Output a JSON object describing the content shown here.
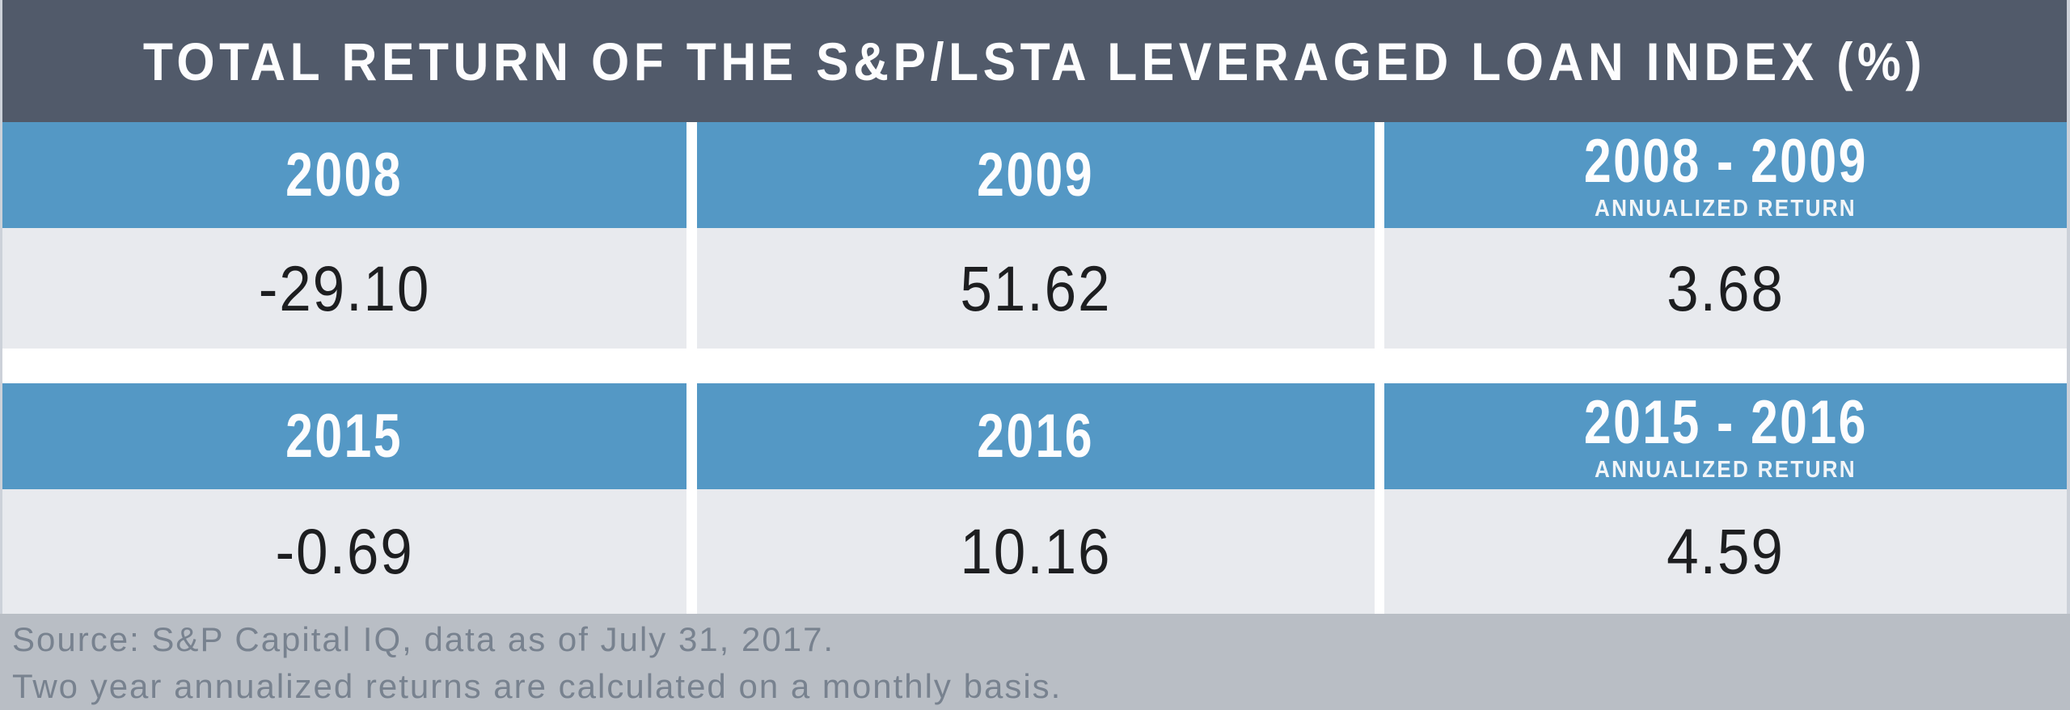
{
  "title": "TOTAL RETURN OF THE S&P/LSTA LEVERAGED LOAN INDEX (%)",
  "table1": {
    "columns": [
      {
        "label": "2008",
        "sublabel": ""
      },
      {
        "label": "2009",
        "sublabel": ""
      },
      {
        "label": "2008 - 2009",
        "sublabel": "ANNUALIZED RETURN"
      }
    ],
    "values": [
      "-29.10",
      "51.62",
      "3.68"
    ]
  },
  "table2": {
    "columns": [
      {
        "label": "2015",
        "sublabel": ""
      },
      {
        "label": "2016",
        "sublabel": ""
      },
      {
        "label": "2015 - 2016",
        "sublabel": "ANNUALIZED RETURN"
      }
    ],
    "values": [
      "-0.69",
      "10.16",
      "4.59"
    ]
  },
  "footer": {
    "line1": "Source: S&P Capital IQ, data as of July 31, 2017.",
    "line2": "Two year annualized returns are calculated on a monthly basis."
  },
  "colors": {
    "title_bar": "#515a6a",
    "header_blue": "#5498c5",
    "value_row_gray": "#e8eaee",
    "footer_gray": "#b9bec5",
    "footer_text": "#78828f",
    "value_text": "#1d1e20",
    "header_text": "#fdfdfe",
    "edge_border": "#ccd1d9"
  },
  "chart_data": {
    "type": "table",
    "title": "TOTAL RETURN OF THE S&P/LSTA LEVERAGED LOAN INDEX (%)",
    "unit": "percent",
    "tables": [
      {
        "categories": [
          "2008",
          "2009",
          "2008 - 2009 ANNUALIZED RETURN"
        ],
        "values": [
          -29.1,
          51.62,
          3.68
        ]
      },
      {
        "categories": [
          "2015",
          "2016",
          "2015 - 2016 ANNUALIZED RETURN"
        ],
        "values": [
          -0.69,
          10.16,
          4.59
        ]
      }
    ],
    "source_note": "Source: S&P Capital IQ, data as of July 31, 2017.",
    "method_note": "Two year annualized returns are calculated on a monthly basis."
  }
}
